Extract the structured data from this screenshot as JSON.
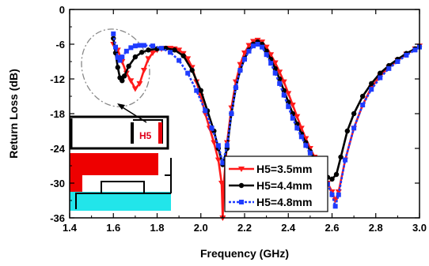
{
  "chart_data": {
    "type": "line",
    "xlabel": "Frequency (GHz)",
    "ylabel": "Return Loss (dB)",
    "xlim": [
      1.4,
      3.0
    ],
    "ylim": [
      -36,
      0
    ],
    "xticks": [
      1.4,
      1.6,
      1.8,
      2.0,
      2.2,
      2.4,
      2.6,
      2.8,
      3.0
    ],
    "xtick_labels": [
      "1.4",
      "1.6",
      "1.8",
      "2.0",
      "2.2",
      "2.4",
      "2.6",
      "2.8",
      "3.0"
    ],
    "yticks": [
      0,
      -6,
      -12,
      -18,
      -24,
      -30,
      -36
    ],
    "ytick_labels": [
      "0",
      "-6",
      "-12",
      "-18",
      "-24",
      "-30",
      "-36"
    ],
    "legend_position": "bottom-right",
    "series": [
      {
        "name": "H5=3.5mm",
        "color": "#ff1a1a",
        "marker": "triangle-down",
        "style": "solid",
        "points": [
          [
            1.6,
            -6.0
          ],
          [
            1.62,
            -7.0
          ],
          [
            1.64,
            -9.0
          ],
          [
            1.66,
            -11.0
          ],
          [
            1.68,
            -12.3
          ],
          [
            1.7,
            -13.7
          ],
          [
            1.72,
            -12.8
          ],
          [
            1.74,
            -10.5
          ],
          [
            1.76,
            -8.5
          ],
          [
            1.78,
            -7.5
          ],
          [
            1.8,
            -7.0
          ],
          [
            1.82,
            -6.8
          ],
          [
            1.84,
            -6.7
          ],
          [
            1.86,
            -6.7
          ],
          [
            1.88,
            -6.8
          ],
          [
            1.9,
            -7.0
          ],
          [
            1.92,
            -7.6
          ],
          [
            1.94,
            -8.5
          ],
          [
            1.96,
            -10.0
          ],
          [
            1.98,
            -12.5
          ],
          [
            2.0,
            -15.0
          ],
          [
            2.02,
            -18.0
          ],
          [
            2.04,
            -20.5
          ],
          [
            2.06,
            -23.0
          ],
          [
            2.08,
            -26.0
          ],
          [
            2.095,
            -30.0
          ],
          [
            2.1,
            -36.0
          ],
          [
            2.105,
            -30.0
          ],
          [
            2.12,
            -23.0
          ],
          [
            2.14,
            -17.0
          ],
          [
            2.16,
            -12.5
          ],
          [
            2.18,
            -9.5
          ],
          [
            2.2,
            -7.5
          ],
          [
            2.22,
            -6.2
          ],
          [
            2.24,
            -5.5
          ],
          [
            2.26,
            -5.3
          ],
          [
            2.28,
            -5.6
          ],
          [
            2.3,
            -6.5
          ],
          [
            2.32,
            -7.8
          ],
          [
            2.34,
            -9.2
          ],
          [
            2.36,
            -10.8
          ],
          [
            2.38,
            -12.5
          ],
          [
            2.4,
            -14.5
          ],
          [
            2.42,
            -16.5
          ],
          [
            2.44,
            -18.5
          ],
          [
            2.46,
            -20.5
          ],
          [
            2.48,
            -22.3
          ],
          [
            2.5,
            -24.0
          ],
          [
            2.52,
            -25.5
          ],
          [
            2.54,
            -27.0
          ],
          [
            2.56,
            -28.5
          ],
          [
            2.58,
            -30.0
          ],
          [
            2.6,
            -31.5
          ],
          [
            2.615,
            -33.0
          ],
          [
            2.63,
            -31.5
          ],
          [
            2.66,
            -26.0
          ],
          [
            2.7,
            -20.5
          ],
          [
            2.74,
            -16.5
          ],
          [
            2.78,
            -13.5
          ],
          [
            2.82,
            -11.5
          ],
          [
            2.86,
            -10.0
          ],
          [
            2.9,
            -8.8
          ],
          [
            2.94,
            -7.7
          ],
          [
            2.98,
            -6.8
          ],
          [
            3.0,
            -6.3
          ]
        ]
      },
      {
        "name": "H5=4.4mm",
        "color": "#000000",
        "marker": "circle",
        "style": "solid",
        "points": [
          [
            1.6,
            -5.0
          ],
          [
            1.61,
            -7.5
          ],
          [
            1.62,
            -10.0
          ],
          [
            1.63,
            -11.8
          ],
          [
            1.64,
            -12.3
          ],
          [
            1.65,
            -11.5
          ],
          [
            1.67,
            -9.8
          ],
          [
            1.7,
            -8.2
          ],
          [
            1.73,
            -7.4
          ],
          [
            1.76,
            -7.0
          ],
          [
            1.8,
            -6.8
          ],
          [
            1.84,
            -6.7
          ],
          [
            1.88,
            -7.0
          ],
          [
            1.92,
            -8.0
          ],
          [
            1.96,
            -10.5
          ],
          [
            2.0,
            -14.0
          ],
          [
            2.03,
            -17.5
          ],
          [
            2.06,
            -21.0
          ],
          [
            2.08,
            -24.0
          ],
          [
            2.1,
            -26.8
          ],
          [
            2.12,
            -24.0
          ],
          [
            2.14,
            -18.0
          ],
          [
            2.16,
            -13.5
          ],
          [
            2.18,
            -10.5
          ],
          [
            2.2,
            -8.5
          ],
          [
            2.22,
            -7.0
          ],
          [
            2.24,
            -6.0
          ],
          [
            2.26,
            -5.6
          ],
          [
            2.28,
            -6.0
          ],
          [
            2.3,
            -7.2
          ],
          [
            2.32,
            -8.6
          ],
          [
            2.34,
            -10.2
          ],
          [
            2.36,
            -12.0
          ],
          [
            2.38,
            -14.0
          ],
          [
            2.4,
            -16.0
          ],
          [
            2.42,
            -18.0
          ],
          [
            2.44,
            -19.8
          ],
          [
            2.46,
            -21.5
          ],
          [
            2.48,
            -23.0
          ],
          [
            2.5,
            -24.5
          ],
          [
            2.52,
            -25.8
          ],
          [
            2.54,
            -27.0
          ],
          [
            2.56,
            -28.2
          ],
          [
            2.58,
            -29.0
          ],
          [
            2.6,
            -29.3
          ],
          [
            2.62,
            -28.5
          ],
          [
            2.64,
            -25.5
          ],
          [
            2.67,
            -21.0
          ],
          [
            2.7,
            -18.0
          ],
          [
            2.74,
            -15.0
          ],
          [
            2.78,
            -12.8
          ],
          [
            2.82,
            -11.0
          ],
          [
            2.86,
            -9.7
          ],
          [
            2.9,
            -8.6
          ],
          [
            2.94,
            -7.6
          ],
          [
            2.98,
            -6.8
          ],
          [
            3.0,
            -6.4
          ]
        ]
      },
      {
        "name": "H5=4.8mm",
        "color": "#1f3cff",
        "marker": "square",
        "style": "dotted",
        "points": [
          [
            1.6,
            -4.2
          ],
          [
            1.61,
            -6.5
          ],
          [
            1.62,
            -8.3
          ],
          [
            1.63,
            -8.8
          ],
          [
            1.64,
            -8.2
          ],
          [
            1.66,
            -7.2
          ],
          [
            1.68,
            -6.6
          ],
          [
            1.7,
            -6.3
          ],
          [
            1.72,
            -6.2
          ],
          [
            1.74,
            -6.2
          ],
          [
            1.78,
            -6.3
          ],
          [
            1.82,
            -6.7
          ],
          [
            1.86,
            -7.4
          ],
          [
            1.9,
            -8.8
          ],
          [
            1.94,
            -11.0
          ],
          [
            1.98,
            -14.0
          ],
          [
            2.02,
            -17.5
          ],
          [
            2.05,
            -20.5
          ],
          [
            2.08,
            -23.5
          ],
          [
            2.1,
            -26.5
          ],
          [
            2.12,
            -23.5
          ],
          [
            2.14,
            -18.0
          ],
          [
            2.16,
            -13.5
          ],
          [
            2.18,
            -10.5
          ],
          [
            2.2,
            -8.6
          ],
          [
            2.22,
            -7.2
          ],
          [
            2.24,
            -6.3
          ],
          [
            2.26,
            -6.0
          ],
          [
            2.28,
            -6.5
          ],
          [
            2.3,
            -7.8
          ],
          [
            2.32,
            -9.3
          ],
          [
            2.34,
            -11.0
          ],
          [
            2.36,
            -12.8
          ],
          [
            2.38,
            -14.8
          ],
          [
            2.4,
            -16.8
          ],
          [
            2.42,
            -18.8
          ],
          [
            2.44,
            -20.5
          ],
          [
            2.46,
            -22.0
          ],
          [
            2.48,
            -23.5
          ],
          [
            2.5,
            -24.8
          ],
          [
            2.52,
            -26.0
          ],
          [
            2.54,
            -27.3
          ],
          [
            2.56,
            -28.7
          ],
          [
            2.58,
            -30.2
          ],
          [
            2.6,
            -32.0
          ],
          [
            2.615,
            -34.0
          ],
          [
            2.63,
            -32.0
          ],
          [
            2.66,
            -26.0
          ],
          [
            2.7,
            -20.5
          ],
          [
            2.74,
            -16.5
          ],
          [
            2.78,
            -13.8
          ],
          [
            2.82,
            -11.8
          ],
          [
            2.86,
            -10.2
          ],
          [
            2.9,
            -9.0
          ],
          [
            2.94,
            -7.9
          ],
          [
            2.98,
            -7.0
          ],
          [
            3.0,
            -6.5
          ]
        ]
      }
    ],
    "annotations": [
      {
        "text": "H5",
        "color": "#e0001a"
      }
    ]
  }
}
